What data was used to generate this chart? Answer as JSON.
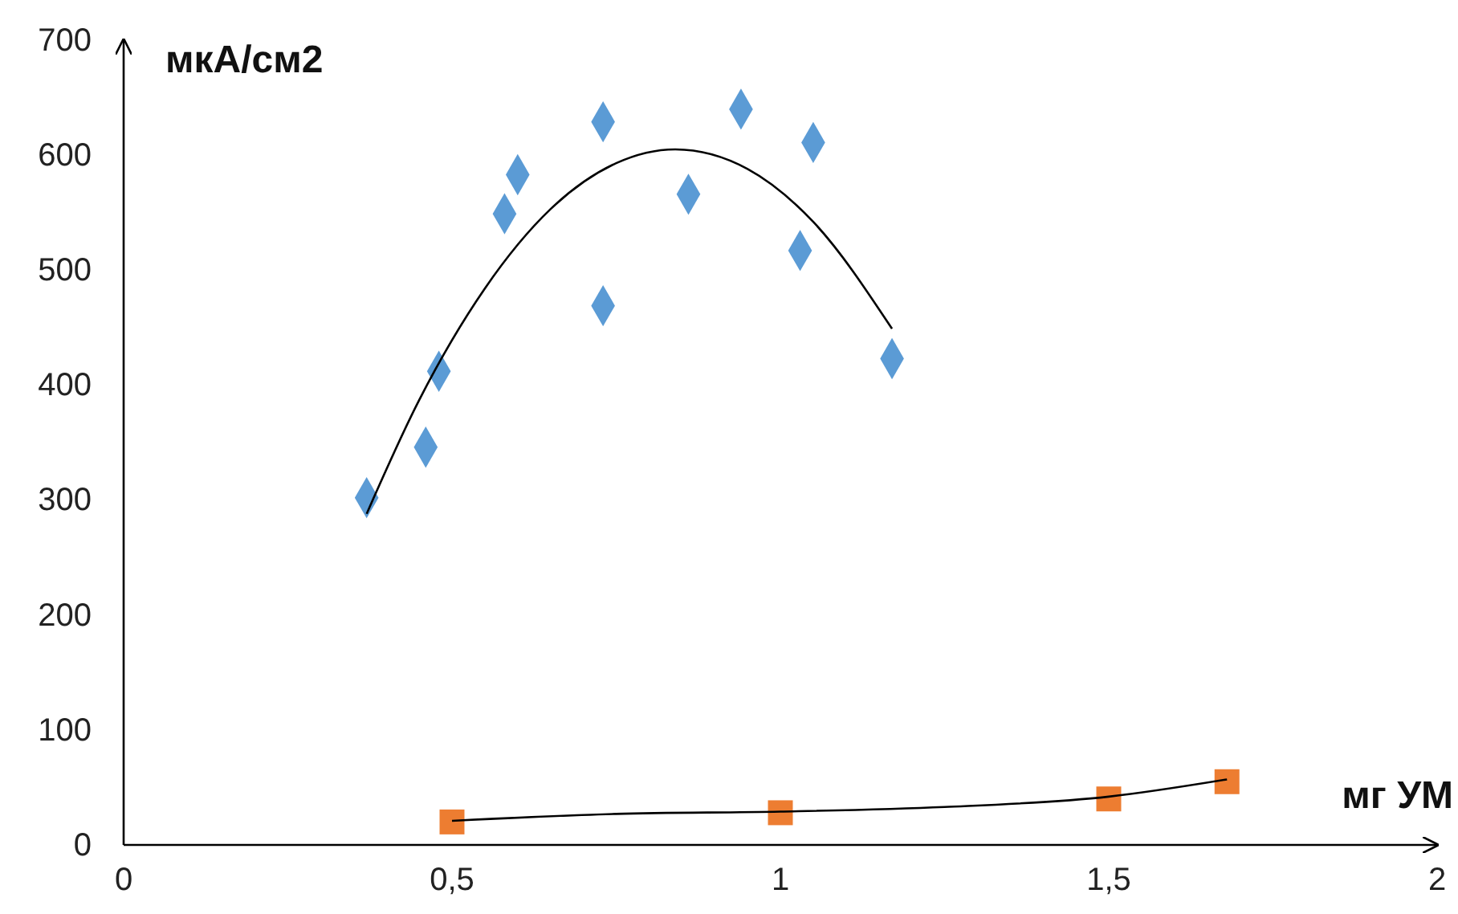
{
  "chart_data": {
    "type": "scatter",
    "xlabel": "мг УМ",
    "ylabel": "мкА/см2",
    "xlim": [
      0,
      2
    ],
    "ylim": [
      0,
      700
    ],
    "xticks": [
      0,
      {
        "value": 0.5,
        "label": "0,5"
      },
      1,
      {
        "value": 1.5,
        "label": "1,5"
      },
      2
    ],
    "yticks": [
      0,
      100,
      200,
      300,
      400,
      500,
      600,
      700
    ],
    "grid": false,
    "series": [
      {
        "marker": "diamond",
        "color": "#5b9bd5",
        "x": [
          0.37,
          0.46,
          0.48,
          0.58,
          0.6,
          0.73,
          0.73,
          0.86,
          0.94,
          1.03,
          1.05,
          1.17
        ],
        "values": [
          302,
          346,
          412,
          549,
          583,
          629,
          469,
          566,
          640,
          517,
          611,
          423
        ]
      },
      {
        "marker": "square",
        "color": "#ed7d31",
        "x": [
          0.5,
          1,
          1.5,
          1.68
        ],
        "values": [
          20,
          28,
          40,
          55
        ]
      },
      {
        "type": "line",
        "marker": "none",
        "color": "#000000",
        "x": [
          0.37,
          0.45,
          0.55,
          0.65,
          0.75,
          0.84,
          0.95,
          1.05,
          1.17
        ],
        "values": [
          288,
          387,
          484,
          553,
          593,
          605,
          588,
          542,
          449
        ]
      },
      {
        "type": "line",
        "marker": "none",
        "color": "#000000",
        "x": [
          0.5,
          0.75,
          1,
          1.25,
          1.5,
          1.68
        ],
        "values": [
          21,
          27,
          29,
          33,
          42,
          57
        ]
      }
    ]
  }
}
